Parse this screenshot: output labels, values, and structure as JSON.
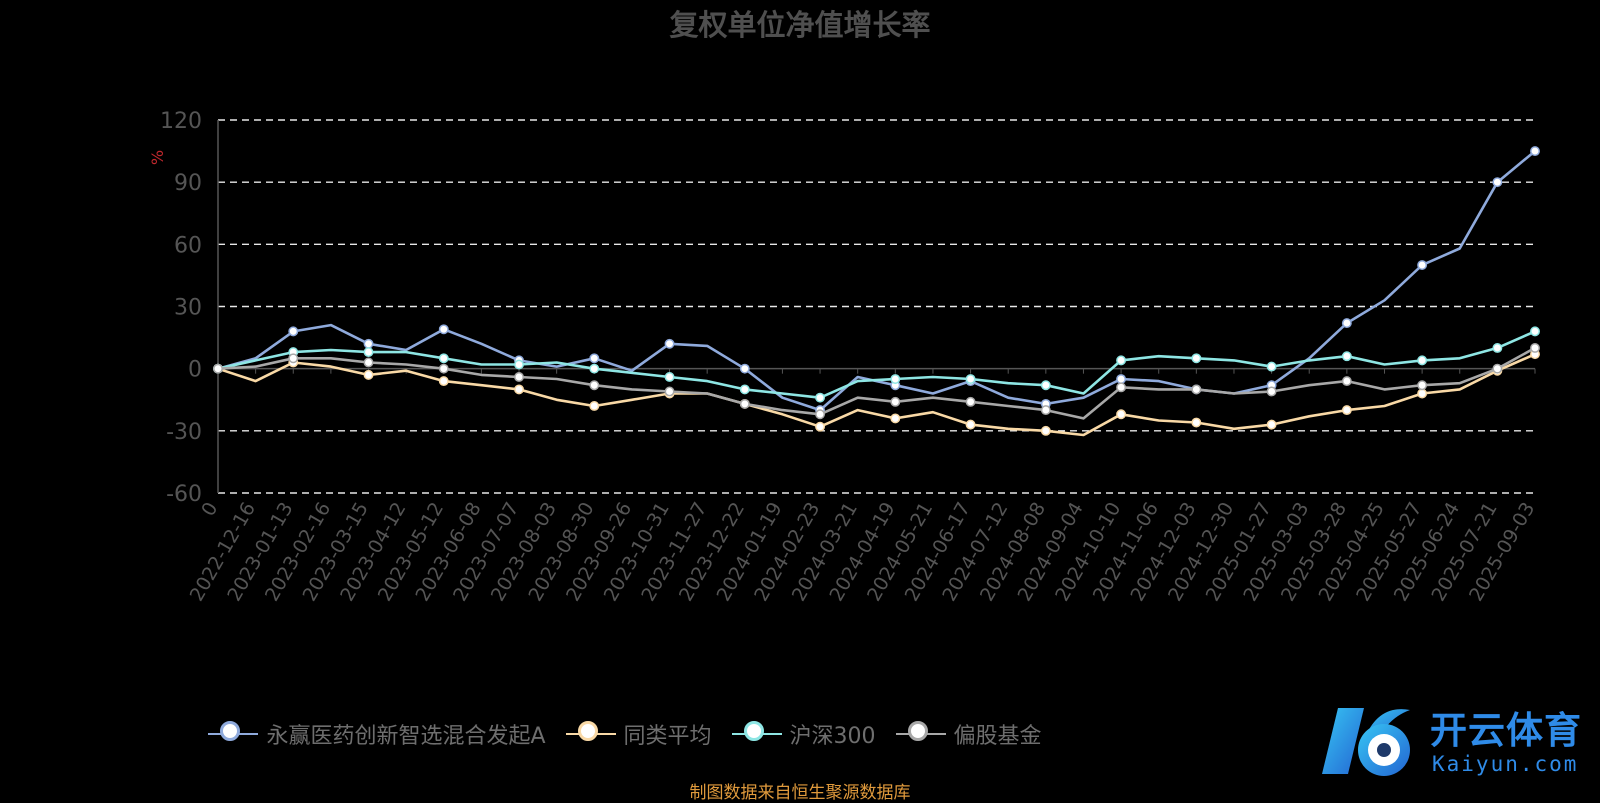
{
  "title": "复权单位净值增长率",
  "source_note": "制图数据来自恒生聚源数据库",
  "logo": {
    "text": "开云体育",
    "sub": "Kaiyun.com"
  },
  "chart_data": {
    "type": "line",
    "ylabel": "%",
    "ylim": [
      -60,
      120
    ],
    "yticks": [
      -60,
      -30,
      0,
      30,
      60,
      90,
      120
    ],
    "grid": true,
    "legend_position": "bottom",
    "x_tick_labels": [
      "0",
      "2022-12-16",
      "2023-01-13",
      "2023-02-16",
      "2023-03-15",
      "2023-04-12",
      "2023-05-12",
      "2023-06-08",
      "2023-07-07",
      "2023-08-03",
      "2023-08-30",
      "2023-09-26",
      "2023-10-31",
      "2023-11-27",
      "2023-12-22",
      "2024-01-19",
      "2024-02-23",
      "2024-03-21",
      "2024-04-19",
      "2024-05-21",
      "2024-06-17",
      "2024-07-12",
      "2024-08-08",
      "2024-09-04",
      "2024-10-10",
      "2024-11-06",
      "2024-12-03",
      "2024-12-30",
      "2025-01-27",
      "2025-03-03",
      "2025-03-28",
      "2025-04-25",
      "2025-05-27",
      "2025-06-24",
      "2025-07-21",
      "2025-09-03"
    ],
    "series": [
      {
        "name": "永赢医药创新智选混合发起A",
        "color": "#8faadc",
        "values": [
          0,
          5,
          18,
          21,
          12,
          9,
          19,
          12,
          4,
          1,
          5,
          -1,
          12,
          11,
          0,
          -14,
          -20,
          -4,
          -8,
          -12,
          -6,
          -14,
          -17,
          -14,
          -5,
          -6,
          -10,
          -12,
          -8,
          5,
          22,
          33,
          50,
          58,
          90,
          105
        ]
      },
      {
        "name": "同类平均",
        "color": "#f9d9a6",
        "values": [
          0,
          -6,
          3,
          1,
          -3,
          -1,
          -6,
          -8,
          -10,
          -15,
          -18,
          -15,
          -12,
          -12,
          -17,
          -22,
          -28,
          -20,
          -24,
          -21,
          -27,
          -29,
          -30,
          -32,
          -22,
          -25,
          -26,
          -29,
          -27,
          -23,
          -20,
          -18,
          -12,
          -10,
          -1,
          7
        ]
      },
      {
        "name": "沪深300",
        "color": "#8ee6e4",
        "values": [
          0,
          4,
          8,
          9,
          8,
          8,
          5,
          2,
          2,
          3,
          0,
          -2,
          -4,
          -6,
          -10,
          -12,
          -14,
          -6,
          -5,
          -4,
          -5,
          -7,
          -8,
          -12,
          4,
          6,
          5,
          4,
          1,
          4,
          6,
          2,
          4,
          5,
          10,
          18
        ]
      },
      {
        "name": "偏股基金",
        "color": "#a8a8a8",
        "values": [
          0,
          1,
          5,
          5,
          3,
          2,
          0,
          -3,
          -4,
          -5,
          -8,
          -10,
          -11,
          -12,
          -17,
          -20,
          -22,
          -14,
          -16,
          -14,
          -16,
          -18,
          -20,
          -24,
          -9,
          -10,
          -10,
          -12,
          -11,
          -8,
          -6,
          -10,
          -8,
          -7,
          0,
          10
        ]
      }
    ]
  }
}
